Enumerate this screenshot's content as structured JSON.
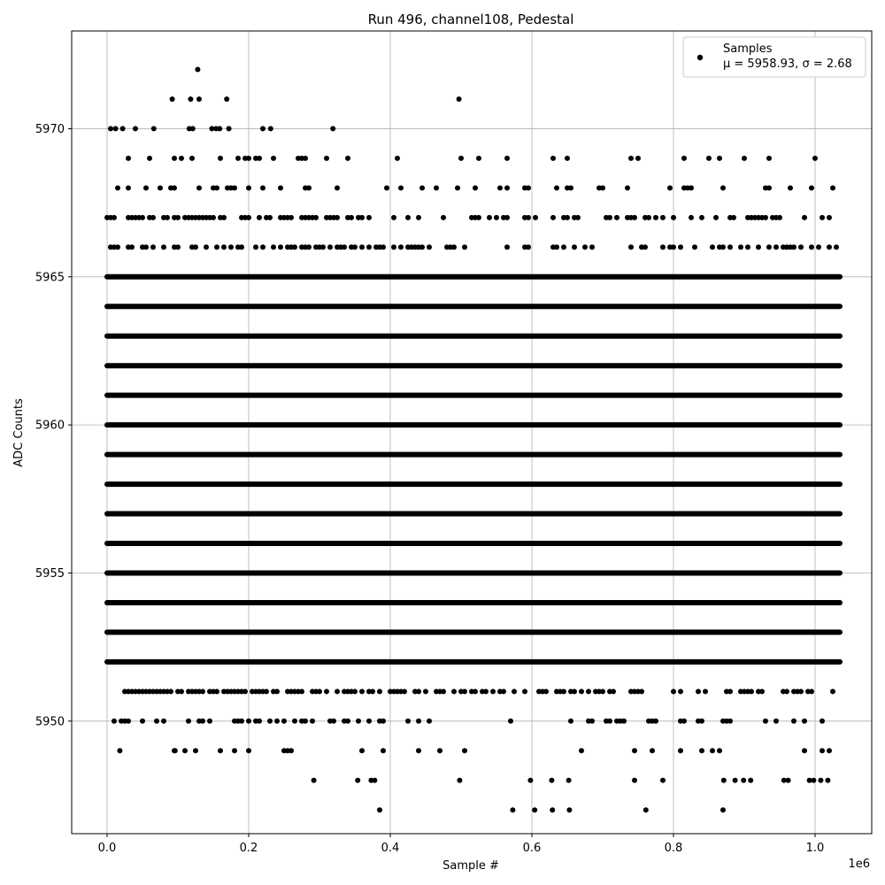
{
  "chart_data": {
    "type": "scatter",
    "title": "Run 496, channel108, Pedestal",
    "xlabel": "Sample #",
    "ylabel": "ADC Counts",
    "x_offset_label": "1e6",
    "xlim": [
      -0.05,
      1.08
    ],
    "ylim": [
      5946.2,
      5973.3
    ],
    "x_ticks": [
      0.0,
      0.2,
      0.4,
      0.6,
      0.8,
      1.0
    ],
    "x_tick_labels": [
      "0.0",
      "0.2",
      "0.4",
      "0.6",
      "0.8",
      "1.0"
    ],
    "y_ticks": [
      5950,
      5955,
      5960,
      5965,
      5970
    ],
    "y_tick_labels": [
      "5950",
      "5955",
      "5960",
      "5965",
      "5970"
    ],
    "grid": true,
    "legend": {
      "placement": "upper right",
      "entries": [
        {
          "label": "Samples",
          "sublabel": "μ = 5958.93, σ = 2.68",
          "marker": "dot",
          "color": "#000000"
        }
      ]
    },
    "series": [
      {
        "name": "Samples",
        "color": "#000000",
        "x_range": [
          0.0,
          1.035
        ],
        "dense_levels": [
          5952,
          5953,
          5954,
          5955,
          5956,
          5957,
          5958,
          5959,
          5960,
          5961,
          5962,
          5963,
          5964,
          5965
        ],
        "sparse_levels": [
          {
            "y": 5951,
            "density": 0.55,
            "x_start": 0.015
          },
          {
            "y": 5950,
            "density": 0.3,
            "x_start": 0.0
          },
          {
            "y": 5949,
            "density": 0.1,
            "x_start": 0.02
          },
          {
            "y": 5966,
            "density": 0.45,
            "x_start": 0.0
          },
          {
            "y": 5967,
            "density": 0.5,
            "x_start": 0.0
          },
          {
            "y": 5968,
            "density": 0.25,
            "x_start": 0.0
          },
          {
            "y": 5969,
            "density": 0.15,
            "x_start": 0.0
          }
        ],
        "points": [
          [
            0.128,
            5972
          ],
          [
            0.092,
            5971
          ],
          [
            0.118,
            5971
          ],
          [
            0.13,
            5971
          ],
          [
            0.169,
            5971
          ],
          [
            0.497,
            5971
          ],
          [
            0.005,
            5970
          ],
          [
            0.012,
            5970
          ],
          [
            0.022,
            5970
          ],
          [
            0.04,
            5970
          ],
          [
            0.066,
            5970
          ],
          [
            0.116,
            5970
          ],
          [
            0.121,
            5970
          ],
          [
            0.148,
            5970
          ],
          [
            0.154,
            5970
          ],
          [
            0.159,
            5970
          ],
          [
            0.172,
            5970
          ],
          [
            0.22,
            5970
          ],
          [
            0.231,
            5970
          ],
          [
            0.319,
            5970
          ],
          [
            0.385,
            5947
          ],
          [
            0.573,
            5947
          ],
          [
            0.604,
            5947
          ],
          [
            0.629,
            5947
          ],
          [
            0.653,
            5947
          ],
          [
            0.761,
            5947
          ],
          [
            0.87,
            5947
          ],
          [
            0.292,
            5948
          ],
          [
            0.354,
            5948
          ],
          [
            0.373,
            5948
          ],
          [
            0.378,
            5948
          ],
          [
            0.498,
            5948
          ],
          [
            0.598,
            5948
          ],
          [
            0.628,
            5948
          ],
          [
            0.652,
            5948
          ],
          [
            0.745,
            5948
          ],
          [
            0.785,
            5948
          ],
          [
            0.871,
            5948
          ],
          [
            0.887,
            5948
          ],
          [
            0.899,
            5948
          ],
          [
            0.909,
            5948
          ],
          [
            0.956,
            5948
          ],
          [
            0.962,
            5948
          ],
          [
            0.992,
            5948
          ],
          [
            0.998,
            5948
          ],
          [
            1.008,
            5948
          ],
          [
            1.018,
            5948
          ],
          [
            0.018,
            5949
          ],
          [
            0.096,
            5949
          ]
        ]
      }
    ]
  }
}
